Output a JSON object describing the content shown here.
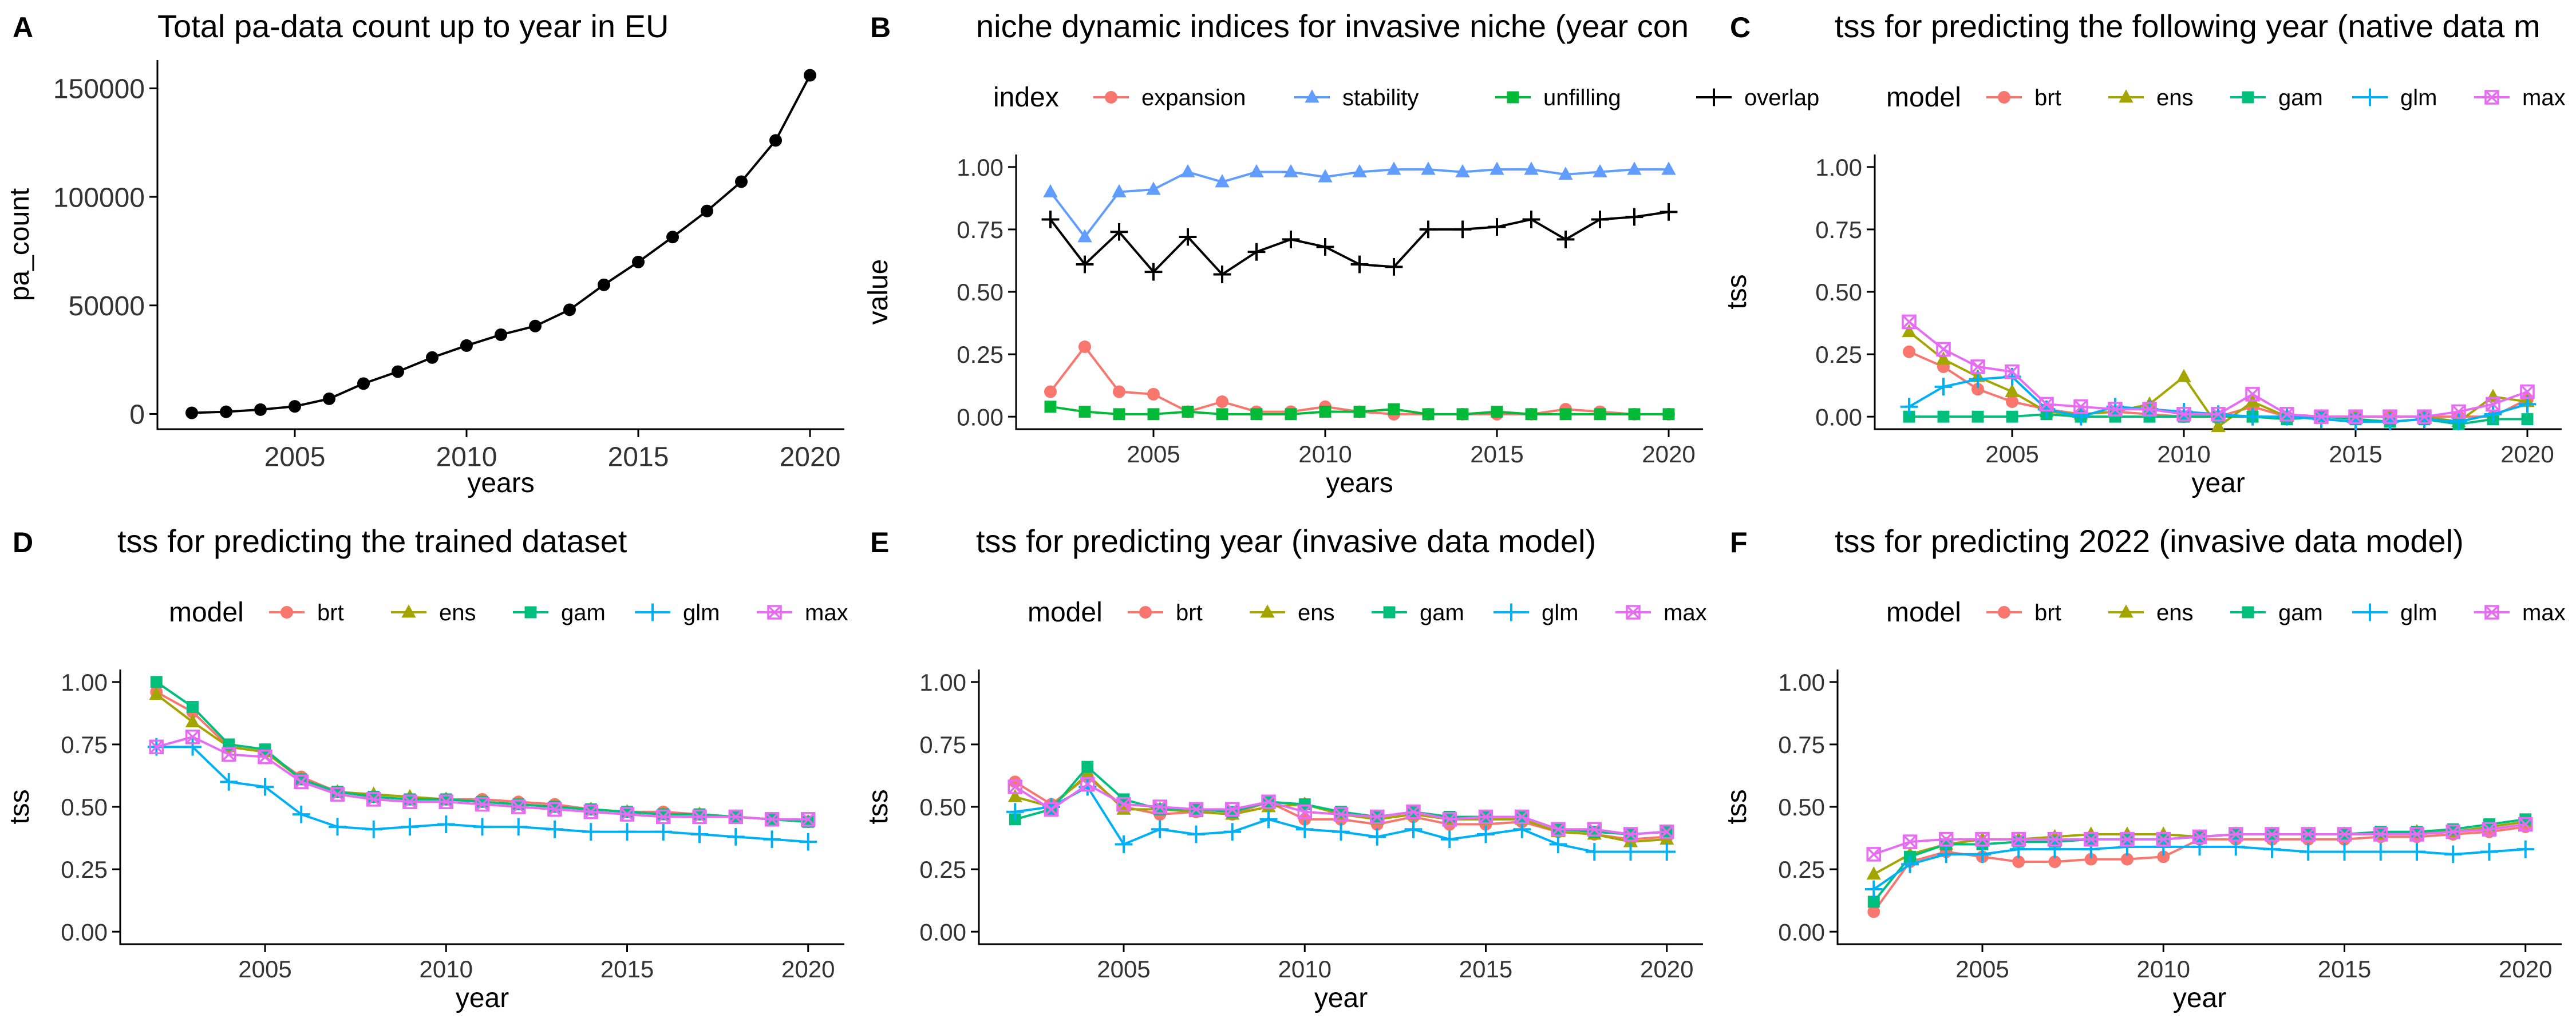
{
  "figure": {
    "x_ticks": [
      "2005",
      "2010",
      "2015",
      "2020"
    ],
    "tss_y_ticks": [
      "0.00",
      "0.25",
      "0.50",
      "0.75",
      "1.00"
    ],
    "model_legend_title": "model",
    "model_names": [
      "brt",
      "ens",
      "gam",
      "glm",
      "max"
    ],
    "model_colors": [
      "#F8766D",
      "#A3A500",
      "#00BF7D",
      "#00B0F6",
      "#E76BF3"
    ],
    "model_shapes": [
      "circle",
      "triangle",
      "square",
      "plus",
      "square-cross"
    ]
  },
  "chart_data": [
    {
      "panel": "A",
      "type": "line",
      "title": "Total pa-data count up to year in EU",
      "xlabel": "years",
      "ylabel": "pa_count",
      "xlim": [
        2001,
        2021
      ],
      "ylim": [
        -7000,
        163000
      ],
      "y_ticks": [
        "0",
        "50000",
        "100000",
        "150000"
      ],
      "x": [
        2002,
        2003,
        2004,
        2005,
        2006,
        2007,
        2008,
        2009,
        2010,
        2011,
        2012,
        2013,
        2014,
        2015,
        2016,
        2017,
        2018,
        2019,
        2020
      ],
      "series": [
        {
          "color": "#000000",
          "shape": "circle",
          "values": [
            500,
            1000,
            2000,
            3500,
            7000,
            14000,
            19500,
            26000,
            31500,
            36500,
            40500,
            48000,
            59500,
            70000,
            81500,
            93500,
            107000,
            126000,
            156000
          ]
        }
      ]
    },
    {
      "panel": "B",
      "type": "line",
      "title": "niche dynamic indices for invasive niche (year con",
      "xlabel": "years",
      "ylabel": "value",
      "legend_title": "index",
      "xlim": [
        2001,
        2021
      ],
      "ylim": [
        -0.05,
        1.05
      ],
      "y_ticks": [
        "0.00",
        "0.25",
        "0.50",
        "0.75",
        "1.00"
      ],
      "x": [
        2002,
        2003,
        2004,
        2005,
        2006,
        2007,
        2008,
        2009,
        2010,
        2011,
        2012,
        2013,
        2014,
        2015,
        2016,
        2017,
        2018,
        2019,
        2020
      ],
      "series": [
        {
          "name": "expansion",
          "color": "#F8766D",
          "shape": "circle",
          "values": [
            0.1,
            0.28,
            0.1,
            0.09,
            0.02,
            0.06,
            0.02,
            0.02,
            0.04,
            0.02,
            0.01,
            0.01,
            0.01,
            0.01,
            0.01,
            0.03,
            0.02,
            0.01,
            0.01
          ]
        },
        {
          "name": "stability",
          "color": "#619CFF",
          "shape": "triangle",
          "values": [
            0.9,
            0.72,
            0.9,
            0.91,
            0.98,
            0.94,
            0.98,
            0.98,
            0.96,
            0.98,
            0.99,
            0.99,
            0.98,
            0.99,
            0.99,
            0.97,
            0.98,
            0.99,
            0.99
          ]
        },
        {
          "name": "unfilling",
          "color": "#00BA38",
          "shape": "square",
          "values": [
            0.04,
            0.02,
            0.01,
            0.01,
            0.02,
            0.01,
            0.01,
            0.01,
            0.02,
            0.02,
            0.03,
            0.01,
            0.01,
            0.02,
            0.01,
            0.01,
            0.01,
            0.01,
            0.01
          ]
        },
        {
          "name": "overlap",
          "color": "#000000",
          "shape": "plus",
          "values": [
            0.79,
            0.61,
            0.74,
            0.58,
            0.72,
            0.57,
            0.66,
            0.71,
            0.68,
            0.61,
            0.6,
            0.75,
            0.75,
            0.76,
            0.79,
            0.71,
            0.79,
            0.8,
            0.82
          ]
        }
      ]
    },
    {
      "panel": "C",
      "type": "line",
      "title": "tss for predicting the following year (native data m",
      "xlabel": "year",
      "ylabel": "tss",
      "legend_title": "model",
      "xlim": [
        2001,
        2021
      ],
      "ylim": [
        -0.05,
        1.05
      ],
      "y_ticks": [
        "0.00",
        "0.25",
        "0.50",
        "0.75",
        "1.00"
      ],
      "x": [
        2002,
        2003,
        2004,
        2005,
        2006,
        2007,
        2008,
        2009,
        2010,
        2011,
        2012,
        2013,
        2014,
        2015,
        2016,
        2017,
        2018,
        2019,
        2020
      ],
      "series": [
        {
          "name": "brt",
          "color": "#F8766D",
          "shape": "circle",
          "values": [
            0.26,
            0.2,
            0.11,
            0.06,
            0.03,
            0.01,
            0.02,
            0.01,
            0.0,
            0.0,
            0.04,
            0.0,
            0.0,
            0.0,
            0.0,
            0.0,
            0.0,
            0.0,
            0.07
          ]
        },
        {
          "name": "ens",
          "color": "#A3A500",
          "shape": "triangle",
          "values": [
            0.34,
            0.23,
            0.16,
            0.1,
            0.02,
            0.01,
            0.02,
            0.05,
            0.16,
            -0.04,
            0.06,
            0.0,
            0.0,
            0.0,
            0.0,
            0.0,
            -0.02,
            0.08,
            0.06
          ]
        },
        {
          "name": "gam",
          "color": "#00BF7D",
          "shape": "square",
          "values": [
            0.0,
            0.0,
            0.0,
            0.0,
            0.01,
            0.0,
            0.0,
            0.0,
            0.0,
            0.0,
            0.0,
            -0.01,
            0.0,
            -0.01,
            -0.02,
            -0.01,
            -0.03,
            -0.01,
            -0.01
          ]
        },
        {
          "name": "glm",
          "color": "#00B0F6",
          "shape": "plus",
          "values": [
            0.04,
            0.12,
            0.15,
            0.16,
            0.03,
            0.0,
            0.04,
            0.03,
            0.02,
            0.01,
            0.0,
            0.0,
            -0.01,
            -0.02,
            -0.02,
            -0.01,
            -0.02,
            0.01,
            0.05
          ]
        },
        {
          "name": "max",
          "color": "#E76BF3",
          "shape": "square-cross",
          "values": [
            0.38,
            0.27,
            0.2,
            0.18,
            0.05,
            0.04,
            0.03,
            0.03,
            0.01,
            0.01,
            0.09,
            0.01,
            0.0,
            0.0,
            0.0,
            0.0,
            0.02,
            0.05,
            0.1
          ]
        }
      ]
    },
    {
      "panel": "D",
      "type": "line",
      "title": "tss for predicting the trained dataset",
      "xlabel": "year",
      "ylabel": "tss",
      "legend_title": "model",
      "xlim": [
        2001,
        2021
      ],
      "ylim": [
        -0.05,
        1.05
      ],
      "y_ticks": [
        "0.00",
        "0.25",
        "0.50",
        "0.75",
        "1.00"
      ],
      "x": [
        2002,
        2003,
        2004,
        2005,
        2006,
        2007,
        2008,
        2009,
        2010,
        2011,
        2012,
        2013,
        2014,
        2015,
        2016,
        2017,
        2018,
        2019,
        2020
      ],
      "series": [
        {
          "name": "brt",
          "color": "#F8766D",
          "shape": "circle",
          "values": [
            0.96,
            0.88,
            0.74,
            0.72,
            0.62,
            0.56,
            0.54,
            0.53,
            0.53,
            0.53,
            0.52,
            0.51,
            0.49,
            0.48,
            0.48,
            0.47,
            0.46,
            0.45,
            0.44
          ]
        },
        {
          "name": "ens",
          "color": "#A3A500",
          "shape": "triangle",
          "values": [
            0.95,
            0.84,
            0.74,
            0.72,
            0.61,
            0.56,
            0.55,
            0.54,
            0.53,
            0.52,
            0.51,
            0.5,
            0.49,
            0.48,
            0.47,
            0.47,
            0.46,
            0.45,
            0.44
          ]
        },
        {
          "name": "gam",
          "color": "#00BF7D",
          "shape": "square",
          "values": [
            1.0,
            0.9,
            0.75,
            0.73,
            0.61,
            0.56,
            0.54,
            0.53,
            0.53,
            0.52,
            0.51,
            0.5,
            0.49,
            0.48,
            0.47,
            0.47,
            0.46,
            0.45,
            0.44
          ]
        },
        {
          "name": "glm",
          "color": "#00B0F6",
          "shape": "plus",
          "values": [
            0.74,
            0.74,
            0.6,
            0.58,
            0.47,
            0.42,
            0.41,
            0.42,
            0.43,
            0.42,
            0.42,
            0.41,
            0.4,
            0.4,
            0.4,
            0.39,
            0.38,
            0.37,
            0.36
          ]
        },
        {
          "name": "max",
          "color": "#E76BF3",
          "shape": "square-cross",
          "values": [
            0.74,
            0.78,
            0.71,
            0.7,
            0.6,
            0.55,
            0.53,
            0.52,
            0.52,
            0.51,
            0.5,
            0.49,
            0.48,
            0.47,
            0.46,
            0.46,
            0.46,
            0.45,
            0.45
          ]
        }
      ]
    },
    {
      "panel": "E",
      "type": "line",
      "title": "tss for predicting year (invasive data model)",
      "xlabel": "year",
      "ylabel": "tss",
      "legend_title": "model",
      "xlim": [
        2001,
        2021
      ],
      "ylim": [
        -0.05,
        1.05
      ],
      "y_ticks": [
        "0.00",
        "0.25",
        "0.50",
        "0.75",
        "1.00"
      ],
      "x": [
        2002,
        2003,
        2004,
        2005,
        2006,
        2007,
        2008,
        2009,
        2010,
        2011,
        2012,
        2013,
        2014,
        2015,
        2016,
        2017,
        2018,
        2019,
        2020
      ],
      "series": [
        {
          "name": "brt",
          "color": "#F8766D",
          "shape": "circle",
          "values": [
            0.6,
            0.51,
            0.62,
            0.5,
            0.47,
            0.48,
            0.47,
            0.52,
            0.45,
            0.45,
            0.43,
            0.46,
            0.43,
            0.43,
            0.44,
            0.4,
            0.39,
            0.37,
            0.38
          ]
        },
        {
          "name": "ens",
          "color": "#A3A500",
          "shape": "triangle",
          "values": [
            0.54,
            0.5,
            0.63,
            0.49,
            0.49,
            0.48,
            0.47,
            0.5,
            0.51,
            0.47,
            0.45,
            0.47,
            0.45,
            0.45,
            0.45,
            0.4,
            0.39,
            0.36,
            0.37
          ]
        },
        {
          "name": "gam",
          "color": "#00BF7D",
          "shape": "square",
          "values": [
            0.45,
            0.49,
            0.66,
            0.53,
            0.49,
            0.49,
            0.48,
            0.52,
            0.51,
            0.48,
            0.46,
            0.48,
            0.46,
            0.46,
            0.46,
            0.41,
            0.4,
            0.39,
            0.4
          ]
        },
        {
          "name": "glm",
          "color": "#00B0F6",
          "shape": "plus",
          "values": [
            0.48,
            0.5,
            0.58,
            0.35,
            0.41,
            0.39,
            0.4,
            0.45,
            0.41,
            0.4,
            0.38,
            0.41,
            0.37,
            0.39,
            0.41,
            0.35,
            0.32,
            0.32,
            0.32
          ]
        },
        {
          "name": "max",
          "color": "#E76BF3",
          "shape": "square-cross",
          "values": [
            0.58,
            0.49,
            0.59,
            0.51,
            0.5,
            0.49,
            0.49,
            0.52,
            0.48,
            0.47,
            0.46,
            0.48,
            0.45,
            0.46,
            0.46,
            0.41,
            0.41,
            0.39,
            0.4
          ]
        }
      ]
    },
    {
      "panel": "F",
      "type": "line",
      "title": "tss for predicting 2022 (invasive data model)",
      "xlabel": "year",
      "ylabel": "tss",
      "legend_title": "model",
      "xlim": [
        2001,
        2021
      ],
      "ylim": [
        -0.05,
        1.05
      ],
      "y_ticks": [
        "0.00",
        "0.25",
        "0.50",
        "0.75",
        "1.00"
      ],
      "x": [
        2002,
        2003,
        2004,
        2005,
        2006,
        2007,
        2008,
        2009,
        2010,
        2011,
        2012,
        2013,
        2014,
        2015,
        2016,
        2017,
        2018,
        2019,
        2020
      ],
      "series": [
        {
          "name": "brt",
          "color": "#F8766D",
          "shape": "circle",
          "values": [
            0.08,
            0.28,
            0.32,
            0.3,
            0.28,
            0.28,
            0.29,
            0.29,
            0.3,
            0.37,
            0.37,
            0.37,
            0.37,
            0.37,
            0.38,
            0.38,
            0.39,
            0.4,
            0.42
          ]
        },
        {
          "name": "ens",
          "color": "#A3A500",
          "shape": "triangle",
          "values": [
            0.23,
            0.31,
            0.35,
            0.37,
            0.37,
            0.38,
            0.39,
            0.39,
            0.39,
            0.38,
            0.39,
            0.39,
            0.39,
            0.39,
            0.39,
            0.4,
            0.4,
            0.42,
            0.44
          ]
        },
        {
          "name": "gam",
          "color": "#00BF7D",
          "shape": "square",
          "values": [
            0.12,
            0.3,
            0.35,
            0.35,
            0.36,
            0.36,
            0.37,
            0.37,
            0.37,
            0.38,
            0.39,
            0.39,
            0.39,
            0.39,
            0.4,
            0.4,
            0.41,
            0.43,
            0.45
          ]
        },
        {
          "name": "glm",
          "color": "#00B0F6",
          "shape": "plus",
          "values": [
            0.17,
            0.27,
            0.31,
            0.31,
            0.33,
            0.33,
            0.33,
            0.34,
            0.34,
            0.34,
            0.34,
            0.33,
            0.32,
            0.32,
            0.32,
            0.32,
            0.31,
            0.32,
            0.33
          ]
        },
        {
          "name": "max",
          "color": "#E76BF3",
          "shape": "square-cross",
          "values": [
            0.31,
            0.36,
            0.37,
            0.37,
            0.37,
            0.37,
            0.37,
            0.37,
            0.37,
            0.38,
            0.39,
            0.39,
            0.39,
            0.39,
            0.39,
            0.39,
            0.4,
            0.41,
            0.43
          ]
        }
      ]
    }
  ]
}
